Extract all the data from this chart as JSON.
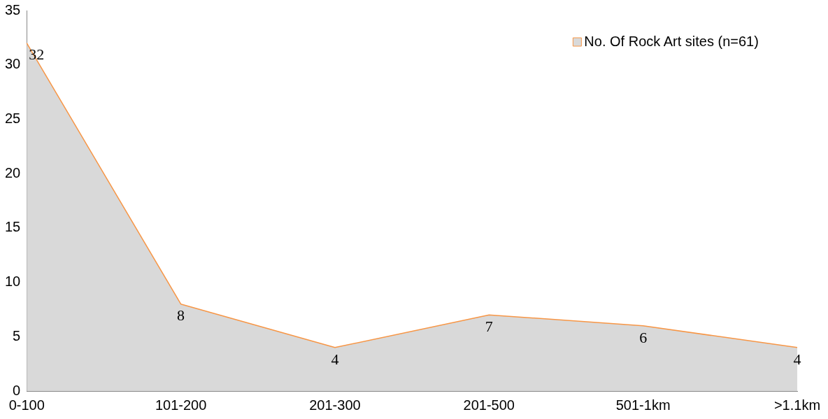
{
  "chart_data": {
    "type": "area",
    "categories": [
      "0-100",
      "101-200",
      "201-300",
      "201-500",
      "501-1km",
      ">1.1km"
    ],
    "series": [
      {
        "name": "No. Of Rock Art sites (n=61)",
        "color": "#f79646",
        "values": [
          32,
          8,
          4,
          7,
          6,
          4
        ]
      }
    ],
    "ylim": [
      0,
      35
    ],
    "yticks": [
      0,
      5,
      10,
      15,
      20,
      25,
      30,
      35
    ],
    "grid": false,
    "legend": "top right",
    "data_labels": true
  }
}
